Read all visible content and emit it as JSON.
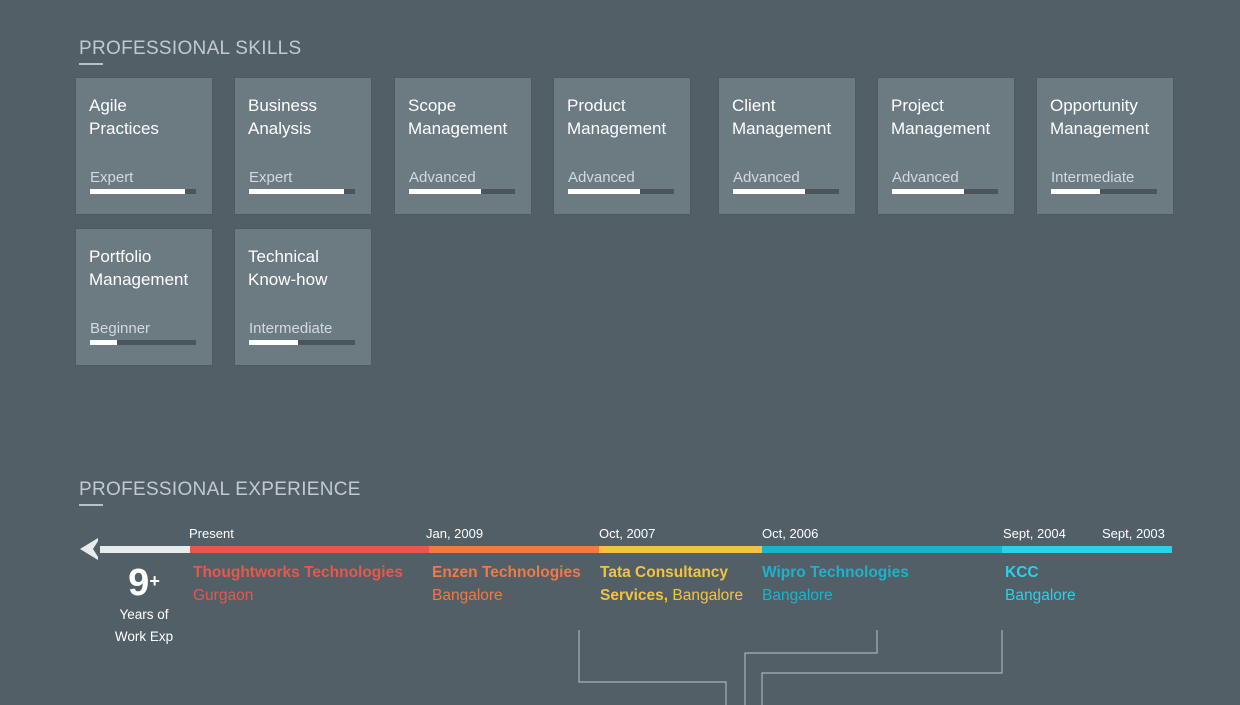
{
  "skills": {
    "title": "PROFESSIONAL SKILLS",
    "items": [
      {
        "name": "Agile\nPractices",
        "level": "Expert",
        "progress": 0.9
      },
      {
        "name": "Business\nAnalysis",
        "level": "Expert",
        "progress": 0.9
      },
      {
        "name": "Scope\nManagement",
        "level": "Advanced",
        "progress": 0.68
      },
      {
        "name": "Product\nManagement",
        "level": "Advanced",
        "progress": 0.68
      },
      {
        "name": "Client\nManagement",
        "level": "Advanced",
        "progress": 0.68
      },
      {
        "name": "Project\nManagement",
        "level": "Advanced",
        "progress": 0.68
      },
      {
        "name": "Opportunity\nManagement",
        "level": "Intermediate",
        "progress": 0.46
      },
      {
        "name": "Portfolio\nManagement",
        "level": "Beginner",
        "progress": 0.25
      },
      {
        "name": "Technical\nKnow-how",
        "level": "Intermediate",
        "progress": 0.46
      }
    ]
  },
  "experience": {
    "title": "PROFESSIONAL EXPERIENCE",
    "years": {
      "number": "9",
      "plus": "+",
      "line1": "Years of",
      "line2": "Work Exp"
    },
    "dates": [
      "Present",
      "Jan, 2009",
      "Oct, 2007",
      "Oct, 2006",
      "Sept, 2004",
      "Sept, 2003"
    ],
    "jobs": [
      {
        "company": "Thoughtworks Technologies",
        "city": "Gurgaon",
        "color": "#e8584a"
      },
      {
        "company": "Enzen Technologies",
        "city": "Bangalore",
        "color": "#ef7a45"
      },
      {
        "company": "Tata Consultancy",
        "company2": "Services,",
        "city": "Bangalore",
        "color": "#f4c242"
      },
      {
        "company": "Wipro Technologies",
        "city": "Bangalore",
        "color": "#1ab3cf"
      },
      {
        "company": "KCC",
        "city": "Bangalore",
        "color": "#2ad0ec"
      }
    ]
  },
  "colors": {
    "background": "#525f66",
    "card": "#6c7a82",
    "seg_thoughtworks": "#e8584a",
    "seg_enzen": "#ef7a45",
    "seg_tcs": "#f4c242",
    "seg_wipro": "#1ab3cf",
    "seg_kcc": "#2ad0ec"
  }
}
